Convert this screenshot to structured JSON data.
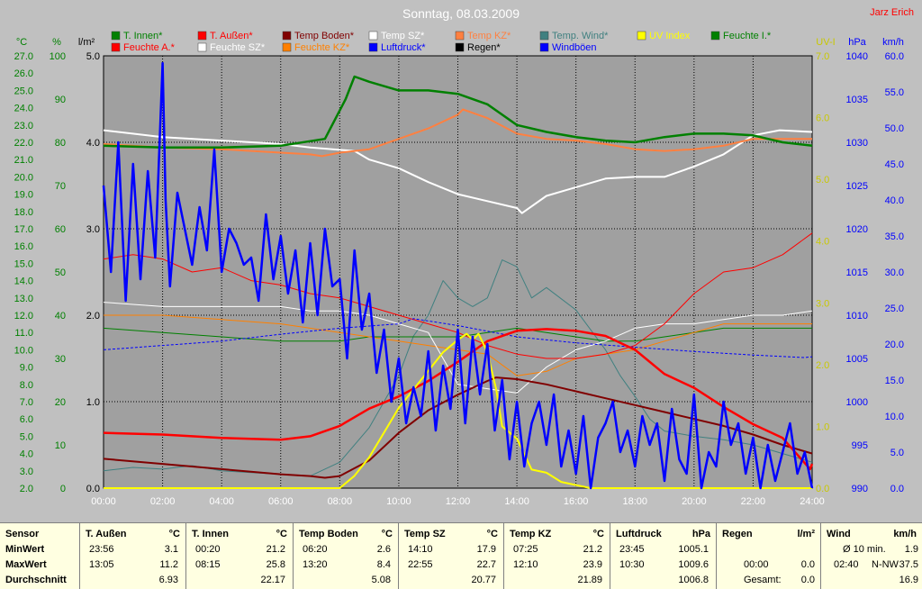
{
  "title": "Sonntag, 08.03.2009",
  "author": "Jarz Erich",
  "colors": {
    "bg": "#c0c0c0",
    "plot": "#a0a0a0",
    "grid": "#000000",
    "title": "#ffffff",
    "author": "#ff0000",
    "left_axis": "#008000",
    "uv_axis": "#c8c800",
    "right_axis": "#0000ff",
    "rain_axis": "#000000"
  },
  "axes": {
    "temp": {
      "unit": "°C",
      "ticks": [
        "27.0",
        "26.0",
        "25.0",
        "24.0",
        "23.0",
        "22.0",
        "21.0",
        "20.0",
        "19.0",
        "18.0",
        "17.0",
        "16.0",
        "15.0",
        "14.0",
        "13.0",
        "12.0",
        "11.0",
        "10.0",
        "9.0",
        "8.0",
        "7.0",
        "6.0",
        "5.0",
        "4.0",
        "3.0",
        "2.0"
      ],
      "min": 2,
      "max": 27
    },
    "humidity": {
      "unit": "%",
      "ticks": [
        "100",
        "90",
        "80",
        "70",
        "60",
        "50",
        "40",
        "30",
        "20",
        "10",
        "0"
      ],
      "min": 0,
      "max": 100
    },
    "rain": {
      "unit": "l/m²",
      "ticks": [
        "5.0",
        "4.0",
        "3.0",
        "2.0",
        "1.0",
        "0.0"
      ],
      "min": 0,
      "max": 5
    },
    "uv": {
      "unit": "UV-I",
      "ticks": [
        "7.0",
        "6.0",
        "5.0",
        "4.0",
        "3.0",
        "2.0",
        "1.0",
        "0.0"
      ],
      "min": 0,
      "max": 7
    },
    "pressure": {
      "unit": "hPa",
      "ticks": [
        "1040",
        "1035",
        "1030",
        "1025",
        "1020",
        "1015",
        "1010",
        "1005",
        "1000",
        "995",
        "990"
      ],
      "min": 990,
      "max": 1040
    },
    "wind": {
      "unit": "km/h",
      "ticks": [
        "60.0",
        "55.0",
        "50.0",
        "45.0",
        "40.0",
        "35.0",
        "30.0",
        "25.0",
        "20.0",
        "15.0",
        "10.0",
        "5.0",
        "0.0"
      ],
      "min": 0,
      "max": 60
    },
    "time": {
      "ticks": [
        "00:00",
        "02:00",
        "04:00",
        "06:00",
        "08:00",
        "10:00",
        "12:00",
        "14:00",
        "16:00",
        "18:00",
        "20:00",
        "22:00",
        "24:00"
      ],
      "min": 0,
      "max": 24
    }
  },
  "legend": [
    {
      "label": "T. Innen*",
      "color": "#008000"
    },
    {
      "label": "T. Außen*",
      "color": "#ff0000"
    },
    {
      "label": "Temp Boden*",
      "color": "#800000"
    },
    {
      "label": "Temp SZ*",
      "color": "#ffffff"
    },
    {
      "label": "Temp KZ*",
      "color": "#ff8040"
    },
    {
      "label": "Temp. Wind*",
      "color": "#408080"
    },
    {
      "label": "UV Index",
      "color": "#ffff00"
    },
    {
      "label": "Feuchte I.*",
      "color": "#008000"
    },
    {
      "label": "Feuchte A.*",
      "color": "#ff0000"
    },
    {
      "label": "Feuchte SZ*",
      "color": "#ffffff"
    },
    {
      "label": "Feuchte KZ*",
      "color": "#ff8000"
    },
    {
      "label": "Luftdruck*",
      "color": "#0000ff"
    },
    {
      "label": "Regen*",
      "color": "#000000"
    },
    {
      "label": "Windböen",
      "color": "#0000ff"
    }
  ],
  "chart_data": {
    "type": "line",
    "title": "Sonntag, 08.03.2009",
    "x_unit": "hours",
    "series": [
      {
        "name": "T. Innen*",
        "axis": "temp",
        "color": "#008000",
        "width": 2.5,
        "x": [
          0,
          2,
          4,
          6,
          7.5,
          8.2,
          8.5,
          9,
          10,
          11,
          12,
          13,
          14,
          15,
          16,
          17,
          18,
          19,
          20,
          21,
          22,
          23,
          24
        ],
        "y": [
          21.8,
          21.7,
          21.7,
          21.8,
          22.2,
          24.5,
          25.8,
          25.5,
          25.0,
          25.0,
          24.8,
          24.2,
          23.0,
          22.6,
          22.3,
          22.1,
          22.0,
          22.3,
          22.5,
          22.5,
          22.4,
          22.0,
          21.8
        ]
      },
      {
        "name": "T. Außen*",
        "axis": "temp",
        "color": "#ff0000",
        "width": 2.5,
        "x": [
          0,
          2,
          4,
          6,
          7,
          8,
          9,
          10,
          11,
          12,
          13,
          14,
          15,
          16,
          17,
          18,
          19,
          20,
          21,
          22,
          23,
          23.93,
          24
        ],
        "y": [
          5.2,
          5.1,
          4.9,
          4.8,
          5.0,
          5.6,
          6.6,
          7.3,
          8.2,
          9.3,
          10.5,
          11.1,
          11.2,
          11.1,
          10.8,
          10.0,
          8.6,
          7.8,
          6.7,
          5.7,
          4.9,
          3.1,
          3.4
        ]
      },
      {
        "name": "Temp Boden*",
        "axis": "temp",
        "color": "#800000",
        "width": 2,
        "x": [
          0,
          2,
          4,
          6,
          7,
          7.5,
          8,
          9,
          10,
          11,
          12,
          13,
          13.3,
          14,
          15,
          16,
          17,
          18,
          19,
          20,
          21,
          22,
          23,
          24
        ],
        "y": [
          3.7,
          3.4,
          3.1,
          2.8,
          2.7,
          2.6,
          2.7,
          3.6,
          5.2,
          6.5,
          7.4,
          8.2,
          8.4,
          8.3,
          8.0,
          7.6,
          7.2,
          6.8,
          6.4,
          6.0,
          5.6,
          5.1,
          4.5,
          4.0
        ]
      },
      {
        "name": "Temp SZ*",
        "axis": "temp",
        "color": "#ffffff",
        "width": 2,
        "x": [
          0,
          2,
          4,
          6,
          7,
          8.5,
          9,
          10,
          11,
          12,
          13,
          14,
          14.17,
          15,
          16,
          17,
          18,
          19,
          20,
          21,
          22,
          22.9,
          24
        ],
        "y": [
          22.7,
          22.3,
          22.1,
          21.9,
          21.7,
          21.5,
          21.0,
          20.5,
          19.7,
          19.0,
          18.6,
          18.2,
          17.9,
          18.9,
          19.4,
          19.9,
          20.0,
          20.0,
          20.6,
          21.3,
          22.4,
          22.7,
          22.6
        ]
      },
      {
        "name": "Temp KZ*",
        "axis": "temp",
        "color": "#ff8040",
        "width": 2,
        "x": [
          0,
          2,
          4,
          5,
          6,
          7,
          7.4,
          8,
          9,
          10,
          11,
          12,
          12.17,
          13,
          14,
          15,
          16,
          17,
          18,
          19,
          20,
          21,
          22,
          23,
          24
        ],
        "y": [
          21.9,
          21.7,
          21.6,
          21.5,
          21.4,
          21.3,
          21.2,
          21.4,
          21.6,
          22.2,
          22.8,
          23.6,
          23.9,
          23.4,
          22.5,
          22.2,
          22.1,
          21.9,
          21.6,
          21.5,
          21.6,
          21.8,
          22.2,
          22.2,
          22.2
        ]
      },
      {
        "name": "Temp. Wind*",
        "axis": "temp",
        "color": "#408080",
        "width": 1,
        "x": [
          0,
          1,
          2,
          3,
          4,
          5,
          6,
          7,
          8,
          9,
          10,
          10.5,
          11,
          11.5,
          12,
          12.5,
          13,
          13.5,
          14,
          14.5,
          15,
          16,
          17,
          17.5,
          18,
          18.5,
          19,
          20,
          21,
          22,
          23,
          24
        ],
        "y": [
          3.0,
          3.2,
          3.1,
          3.3,
          3.0,
          2.9,
          2.8,
          2.7,
          3.5,
          5.5,
          8.5,
          10.8,
          12.0,
          14.0,
          13.0,
          12.5,
          13.0,
          15.2,
          14.8,
          13.0,
          13.6,
          12.3,
          10.0,
          8.5,
          7.3,
          6.0,
          5.3,
          5.0,
          4.8,
          4.5,
          4.0,
          3.5
        ]
      },
      {
        "name": "Feuchte A.*",
        "axis": "humidity",
        "color": "#ff0000",
        "width": 1,
        "x": [
          0,
          1,
          2,
          3,
          4,
          5,
          6,
          7,
          8,
          9,
          10,
          11,
          12,
          13,
          14,
          15,
          16,
          17,
          18,
          19,
          20,
          21,
          22,
          23,
          24
        ],
        "y": [
          53,
          54,
          53,
          50,
          51,
          48,
          47,
          45,
          44,
          42,
          40,
          38,
          36,
          33,
          31,
          30,
          30,
          31,
          33,
          38,
          45,
          50,
          51,
          54,
          59
        ]
      },
      {
        "name": "Feuchte SZ*",
        "axis": "humidity",
        "color": "#ffffff",
        "width": 1,
        "x": [
          0,
          2,
          4,
          6,
          7,
          8,
          9,
          10,
          11,
          12,
          13,
          14,
          15,
          16,
          17,
          18,
          19,
          20,
          21,
          22,
          23,
          24
        ],
        "y": [
          43,
          42,
          42,
          42,
          41,
          41,
          40,
          38,
          36,
          24,
          23,
          22,
          28,
          32,
          34,
          37,
          38,
          38,
          39,
          40,
          40,
          41
        ]
      },
      {
        "name": "Feuchte KZ*",
        "axis": "humidity",
        "color": "#ff8000",
        "width": 1,
        "x": [
          0,
          2,
          4,
          6,
          7,
          8,
          9,
          10,
          11,
          12,
          13,
          14,
          15,
          16,
          17,
          18,
          19,
          20,
          21,
          22,
          23,
          24
        ],
        "y": [
          40,
          40,
          39,
          38,
          37,
          36,
          35,
          34,
          33,
          32,
          31,
          26,
          27,
          30,
          31,
          32,
          34,
          36,
          38,
          38,
          38,
          38
        ]
      },
      {
        "name": "Feuchte I.*",
        "axis": "humidity",
        "color": "#008000",
        "width": 1,
        "x": [
          0,
          2,
          4,
          6,
          7,
          8,
          9,
          10,
          11,
          12,
          13,
          14,
          15,
          16,
          17,
          18,
          19,
          20,
          21,
          22,
          23,
          24
        ],
        "y": [
          37,
          36,
          35,
          34,
          34,
          34,
          35,
          35,
          35,
          35,
          36,
          37,
          36,
          35,
          34,
          34,
          35,
          36,
          37,
          37,
          37,
          37
        ]
      },
      {
        "name": "Luftdruck*",
        "axis": "pressure",
        "color": "#0000ff",
        "width": 1,
        "dashed": true,
        "x": [
          0,
          2,
          4,
          6,
          8,
          10,
          10.5,
          12,
          14,
          16,
          18,
          20,
          22,
          23.75,
          24
        ],
        "y": [
          1006.0,
          1006.5,
          1007.0,
          1007.8,
          1008.5,
          1009.0,
          1009.6,
          1008.8,
          1007.5,
          1006.8,
          1006.3,
          1005.8,
          1005.4,
          1005.1,
          1005.2
        ]
      },
      {
        "name": "UV Index",
        "axis": "uv",
        "color": "#ffff00",
        "width": 2,
        "x": [
          0,
          8,
          8.5,
          9,
          9.5,
          10,
          10.5,
          11,
          11.5,
          12,
          12.3,
          12.5,
          12.7,
          13,
          13.3,
          13.5,
          14,
          14.5,
          15,
          15.5,
          16,
          16.5,
          17,
          24
        ],
        "y": [
          0,
          0,
          0.2,
          0.5,
          0.9,
          1.3,
          1.6,
          1.9,
          2.2,
          2.4,
          2.5,
          2.4,
          2.5,
          2.2,
          1.6,
          1.0,
          0.8,
          0.3,
          0.25,
          0.1,
          0.05,
          0.0,
          0,
          0
        ]
      },
      {
        "name": "Windböen",
        "axis": "wind",
        "color": "#0000ff",
        "width": 2.5,
        "x": [
          0,
          0.25,
          0.5,
          0.75,
          1,
          1.25,
          1.5,
          1.75,
          2,
          2.1,
          2.25,
          2.5,
          2.75,
          3,
          3.25,
          3.5,
          3.75,
          4,
          4.25,
          4.5,
          4.75,
          5,
          5.25,
          5.5,
          5.75,
          6,
          6.25,
          6.5,
          6.75,
          7,
          7.25,
          7.5,
          7.75,
          8,
          8.25,
          8.5,
          8.75,
          9,
          9.25,
          9.5,
          9.75,
          10,
          10.25,
          10.5,
          10.75,
          11,
          11.25,
          11.5,
          11.75,
          12,
          12.25,
          12.5,
          12.75,
          13,
          13.25,
          13.5,
          13.75,
          14,
          14.25,
          14.5,
          14.75,
          15,
          15.25,
          15.5,
          15.75,
          16,
          16.25,
          16.5,
          16.75,
          17,
          17.25,
          17.5,
          17.75,
          18,
          18.25,
          18.5,
          18.75,
          19,
          19.25,
          19.5,
          19.75,
          20,
          20.25,
          20.5,
          20.75,
          21,
          21.25,
          21.5,
          21.75,
          22,
          22.25,
          22.5,
          22.75,
          23,
          23.25,
          23.5,
          23.75,
          24
        ],
        "y": [
          42,
          30,
          48,
          26,
          45,
          29,
          44,
          32,
          59,
          40,
          28,
          41,
          36,
          31,
          39,
          33,
          47,
          30,
          36,
          34,
          31,
          32,
          26,
          38,
          29,
          35,
          27,
          33,
          23,
          34,
          24,
          36,
          28,
          29,
          18,
          33,
          22,
          27,
          16,
          22,
          12,
          18,
          9,
          14,
          10,
          19,
          8,
          17,
          11,
          22,
          9,
          21,
          13,
          20,
          8,
          15,
          4,
          12,
          3,
          9,
          12,
          6,
          13,
          3,
          8,
          2,
          10,
          0,
          7,
          9,
          12,
          5,
          8,
          3,
          10,
          6,
          9,
          1,
          11,
          4,
          2,
          13,
          0,
          5,
          3,
          12,
          6,
          9,
          2,
          7,
          0,
          6,
          1,
          5,
          9,
          2,
          5,
          0
        ]
      }
    ]
  },
  "stats": {
    "row_labels": [
      "Sensor",
      "MinWert",
      "MaxWert",
      "Durchschnitt"
    ],
    "columns": [
      {
        "name": "T. Außen",
        "unit": "°C",
        "min_time": "23:56",
        "min": "3.1",
        "max_time": "13:05",
        "max": "11.2",
        "avg": "6.93"
      },
      {
        "name": "T. Innen",
        "unit": "°C",
        "min_time": "00:20",
        "min": "21.2",
        "max_time": "08:15",
        "max": "25.8",
        "avg": "22.17"
      },
      {
        "name": "Temp Boden",
        "unit": "°C",
        "min_time": "06:20",
        "min": "2.6",
        "max_time": "13:20",
        "max": "8.4",
        "avg": "5.08"
      },
      {
        "name": "Temp SZ",
        "unit": "°C",
        "min_time": "14:10",
        "min": "17.9",
        "max_time": "22:55",
        "max": "22.7",
        "avg": "20.77"
      },
      {
        "name": "Temp KZ",
        "unit": "°C",
        "min_time": "07:25",
        "min": "21.2",
        "max_time": "12:10",
        "max": "23.9",
        "avg": "21.89"
      },
      {
        "name": "Luftdruck",
        "unit": "hPa",
        "min_time": "23:45",
        "min": "1005.1",
        "max_time": "10:30",
        "max": "1009.6",
        "avg": "1006.8"
      }
    ],
    "rain": {
      "name": "Regen",
      "unit": "l/m²",
      "row1_time": "00:00",
      "row1_val": "0.0",
      "row2_label": "Gesamt:",
      "row2_val": "0.0"
    },
    "wind": {
      "name": "Wind",
      "unit": "km/h",
      "row1_label": "Ø 10 min.",
      "row1_val": "1.9",
      "row2_time": "02:40",
      "row2_dir": "N-NW",
      "row2_val": "37.5",
      "row3_val": "16.9"
    }
  }
}
